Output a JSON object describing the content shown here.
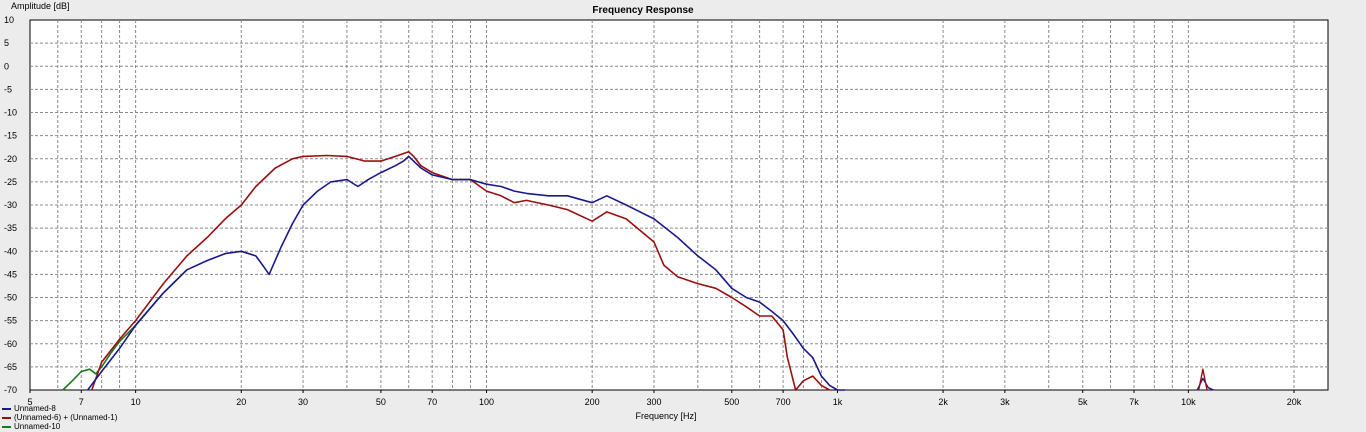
{
  "colors": {
    "background": "#ececec",
    "plot_background": "#ffffff",
    "grid": "#8a8a8a",
    "series_1": "#1a1a8c",
    "series_2": "#9a1010",
    "series_3": "#1c7a1c"
  },
  "chart_data": {
    "type": "line",
    "title": "Frequency Response",
    "xlabel": "Frequency [Hz]",
    "ylabel": "Amplitude [dB]",
    "x_scale": "log",
    "xlim": [
      5,
      25000
    ],
    "ylim": [
      -70,
      10
    ],
    "grid": true,
    "legend_position": "bottom-left",
    "x_ticks": [
      {
        "value": 5,
        "label": "5"
      },
      {
        "value": 7,
        "label": "7"
      },
      {
        "value": 10,
        "label": "10"
      },
      {
        "value": 20,
        "label": "20"
      },
      {
        "value": 30,
        "label": "30"
      },
      {
        "value": 50,
        "label": "50"
      },
      {
        "value": 70,
        "label": "70"
      },
      {
        "value": 100,
        "label": "100"
      },
      {
        "value": 200,
        "label": "200"
      },
      {
        "value": 300,
        "label": "300"
      },
      {
        "value": 500,
        "label": "500"
      },
      {
        "value": 700,
        "label": "700"
      },
      {
        "value": 1000,
        "label": "1k"
      },
      {
        "value": 2000,
        "label": "2k"
      },
      {
        "value": 3000,
        "label": "3k"
      },
      {
        "value": 5000,
        "label": "5k"
      },
      {
        "value": 7000,
        "label": "7k"
      },
      {
        "value": 10000,
        "label": "10k"
      },
      {
        "value": 20000,
        "label": "20k"
      }
    ],
    "y_ticks": [
      10,
      5,
      0,
      -5,
      -10,
      -15,
      -20,
      -25,
      -30,
      -35,
      -40,
      -45,
      -50,
      -55,
      -60,
      -65,
      -70
    ],
    "series": [
      {
        "name": "Unnamed-8",
        "color": "#1a1a8c",
        "x": [
          7.3,
          8,
          9,
          10,
          12,
          14,
          16,
          18,
          20,
          22,
          23,
          24,
          26,
          28,
          30,
          33,
          36,
          40,
          43,
          46,
          50,
          55,
          58,
          60,
          65,
          70,
          80,
          90,
          100,
          110,
          120,
          130,
          150,
          170,
          200,
          220,
          250,
          300,
          350,
          400,
          450,
          500,
          550,
          600,
          650,
          700,
          750,
          800,
          850,
          900,
          950,
          1000,
          1050
        ],
        "y": [
          -70,
          -66,
          -61,
          -56,
          -49,
          -44,
          -42,
          -40.5,
          -40,
          -41,
          -43,
          -45,
          -39,
          -34,
          -30,
          -27,
          -25,
          -24.5,
          -26,
          -24.5,
          -23,
          -21.5,
          -20.5,
          -19.5,
          -22,
          -23.5,
          -24.5,
          -24.5,
          -25.5,
          -26,
          -27,
          -27.5,
          -28,
          -28,
          -29.5,
          -28,
          -30,
          -33,
          -37,
          -41,
          -44,
          -48,
          -50,
          -51,
          -53,
          -55,
          -58,
          -61,
          -63,
          -67,
          -69,
          -70,
          -70
        ]
      },
      {
        "name": "(Unnamed-6) + (Unnamed-1)",
        "color": "#9a1010",
        "x": [
          7.5,
          8,
          9,
          10,
          12,
          14,
          16,
          18,
          20,
          22,
          25,
          28,
          30,
          35,
          40,
          45,
          50,
          55,
          60,
          62,
          65,
          70,
          80,
          90,
          100,
          110,
          120,
          130,
          150,
          170,
          200,
          220,
          250,
          300,
          320,
          350,
          400,
          450,
          500,
          550,
          600,
          650,
          700,
          720,
          760,
          800,
          850,
          900,
          950
        ],
        "y": [
          -70,
          -64,
          -59,
          -55,
          -47,
          -41,
          -37,
          -33,
          -30,
          -26,
          -22,
          -20,
          -19.5,
          -19.3,
          -19.5,
          -20.5,
          -20.5,
          -19.5,
          -18.5,
          -19.5,
          -21.5,
          -23,
          -24.5,
          -24.5,
          -27,
          -28,
          -29.5,
          -29,
          -30,
          -31,
          -33.5,
          -31.5,
          -33,
          -38,
          -43,
          -45.5,
          -47,
          -48,
          -50,
          -52,
          -54,
          -54,
          -57,
          -63,
          -70,
          -68,
          -67,
          -69,
          -70
        ]
      },
      {
        "name": "Unnamed-10",
        "color": "#1c7a1c",
        "x": [
          6.2,
          6.6,
          7,
          7.4,
          7.7,
          8,
          8.5,
          9,
          10,
          12,
          14
        ],
        "y": [
          -70,
          -68,
          -66,
          -65.5,
          -66.5,
          -65,
          -62,
          -59.5,
          -56,
          -49,
          -44
        ]
      }
    ],
    "spikes": [
      {
        "name": "Unnamed-8",
        "color": "#1a1a8c",
        "x": [
          10600,
          11000,
          11400,
          11800
        ],
        "y": [
          -70,
          -67.5,
          -69.5,
          -70
        ]
      },
      {
        "name": "(Unnamed-6) + (Unnamed-1)",
        "color": "#9a1010",
        "x": [
          10700,
          11000,
          11300
        ],
        "y": [
          -70,
          -65.5,
          -70
        ]
      }
    ]
  }
}
